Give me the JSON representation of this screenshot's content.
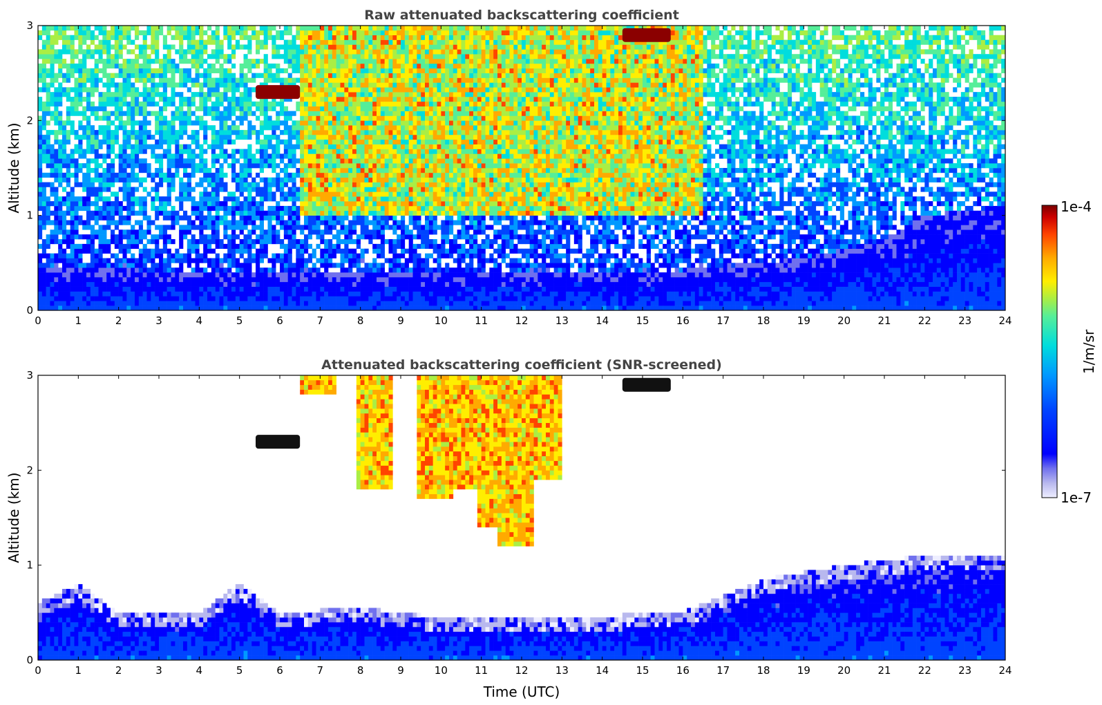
{
  "chart_data": [
    {
      "type": "heatmap",
      "title": "Raw attenuated backscattering coefficient",
      "xlabel": "",
      "ylabel": "Altitude (km)",
      "xlim": [
        0,
        24
      ],
      "ylim": [
        0,
        3
      ],
      "xticks": [
        "0",
        "1",
        "2",
        "3",
        "4",
        "5",
        "6",
        "7",
        "8",
        "9",
        "10",
        "11",
        "12",
        "13",
        "14",
        "15",
        "16",
        "17",
        "18",
        "19",
        "20",
        "21",
        "22",
        "23",
        "24"
      ],
      "yticks": [
        "0",
        "1",
        "2",
        "3"
      ],
      "grid": false,
      "features": {
        "boundary_layer_top_km": [
          {
            "x": 0,
            "y": 0.45
          },
          {
            "x": 3,
            "y": 0.42
          },
          {
            "x": 6,
            "y": 0.4
          },
          {
            "x": 12,
            "y": 0.4
          },
          {
            "x": 16,
            "y": 0.42
          },
          {
            "x": 19,
            "y": 0.55
          },
          {
            "x": 21,
            "y": 0.75
          },
          {
            "x": 22,
            "y": 1.0
          },
          {
            "x": 24,
            "y": 1.1
          }
        ],
        "aerosol_layer_x_range": [
          6.5,
          16.5
        ],
        "cloud_layers": [
          {
            "x_start": 5.4,
            "x_end": 6.5,
            "altitude_km": 2.3
          },
          {
            "x_start": 14.5,
            "x_end": 15.7,
            "altitude_km": 2.9
          }
        ]
      }
    },
    {
      "type": "heatmap",
      "title": "Attenuated backscattering coefficient (SNR-screened)",
      "xlabel": "Time (UTC)",
      "ylabel": "Altitude (km)",
      "xlim": [
        0,
        24
      ],
      "ylim": [
        0,
        3
      ],
      "xticks": [
        "0",
        "1",
        "2",
        "3",
        "4",
        "5",
        "6",
        "7",
        "8",
        "9",
        "10",
        "11",
        "12",
        "13",
        "14",
        "15",
        "16",
        "17",
        "18",
        "19",
        "20",
        "21",
        "22",
        "23",
        "24"
      ],
      "yticks": [
        "0",
        "1",
        "2",
        "3"
      ],
      "grid": false,
      "features": {
        "boundary_layer_top_km": [
          {
            "x": 0,
            "y": 0.6
          },
          {
            "x": 1,
            "y": 0.8
          },
          {
            "x": 2,
            "y": 0.5
          },
          {
            "x": 4,
            "y": 0.5
          },
          {
            "x": 5,
            "y": 0.8
          },
          {
            "x": 6,
            "y": 0.5
          },
          {
            "x": 8,
            "y": 0.55
          },
          {
            "x": 10,
            "y": 0.45
          },
          {
            "x": 13,
            "y": 0.45
          },
          {
            "x": 16,
            "y": 0.5
          },
          {
            "x": 18,
            "y": 0.85
          },
          {
            "x": 20,
            "y": 1.0
          },
          {
            "x": 22,
            "y": 1.1
          },
          {
            "x": 24,
            "y": 1.12
          }
        ],
        "cloud_layers": [
          {
            "x_start": 5.4,
            "x_end": 6.5,
            "altitude_km": 2.3,
            "screened": true
          },
          {
            "x_start": 14.5,
            "x_end": 15.7,
            "altitude_km": 2.9,
            "screened": true
          }
        ]
      }
    }
  ],
  "colorbar": {
    "label": "1/m/sr",
    "max_label": "1e-4",
    "min_label": "1e-7",
    "range": [
      1e-07,
      0.0001
    ],
    "scale": "log",
    "colormap": [
      "#eeeeff",
      "#b8b8ee",
      "#7070ee",
      "#0000ff",
      "#0044ff",
      "#0099ff",
      "#00dddd",
      "#55ee99",
      "#aaee44",
      "#ffee00",
      "#ffaa00",
      "#ff4400",
      "#cc0000",
      "#7a0000"
    ]
  }
}
